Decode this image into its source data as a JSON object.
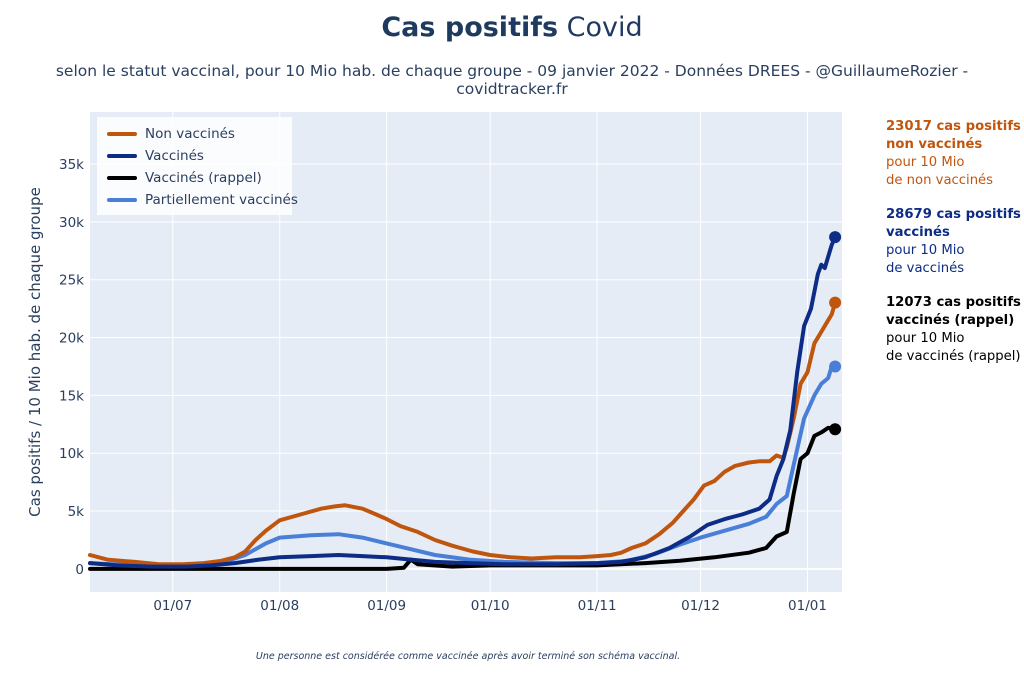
{
  "title": {
    "bold": "Cas positifs",
    "normal": "Covid"
  },
  "subtitle": "selon le statut vaccinal, pour 10 Mio hab. de chaque groupe - 09 janvier 2022 - Données DREES - @GuillaumeRozier - covidtracker.fr",
  "footnote": "Une personne est considérée comme vaccinée après avoir terminé son schéma vaccinal.",
  "annotations": [
    {
      "strong1": "23017 cas positifs",
      "strong2": "non vaccinés",
      "line1": "pour 10 Mio",
      "line2": "de non vaccinés",
      "color": "#c0560e"
    },
    {
      "strong1": "28679 cas positifs",
      "strong2": "vaccinés",
      "line1": "pour 10 Mio",
      "line2": "de vaccinés",
      "color": "#0d2c86"
    },
    {
      "strong1": "12073 cas positifs",
      "strong2": "vaccinés (rappel)",
      "line1": "pour 10 Mio",
      "line2": "de vaccinés (rappel)",
      "color": "#000000"
    }
  ],
  "chart_data": {
    "type": "line",
    "title": "Cas positifs Covid",
    "ylabel": "Cas positifs / 10 Mio hab. de chaque groupe",
    "xlabel": "",
    "x_range": [
      "2021-06-07",
      "2022-01-11"
    ],
    "ylim": [
      -2000,
      39500
    ],
    "x_ticks": [
      {
        "date": "2021-07-01",
        "label": "01/07"
      },
      {
        "date": "2021-08-01",
        "label": "01/08"
      },
      {
        "date": "2021-09-01",
        "label": "01/09"
      },
      {
        "date": "2021-10-01",
        "label": "01/10"
      },
      {
        "date": "2021-11-01",
        "label": "01/11"
      },
      {
        "date": "2021-12-01",
        "label": "01/12"
      },
      {
        "date": "2022-01-01",
        "label": "01/01"
      }
    ],
    "y_ticks": [
      {
        "value": 0,
        "label": "0"
      },
      {
        "value": 5000,
        "label": "5k"
      },
      {
        "value": 10000,
        "label": "10k"
      },
      {
        "value": 15000,
        "label": "15k"
      },
      {
        "value": 20000,
        "label": "20k"
      },
      {
        "value": 25000,
        "label": "25k"
      },
      {
        "value": 30000,
        "label": "30k"
      },
      {
        "value": 35000,
        "label": "35k"
      }
    ],
    "grid": true,
    "legend_position": "top-left",
    "series": [
      {
        "name": "Non vaccinés",
        "color": "#c0560e",
        "points": [
          [
            "2021-06-07",
            1200
          ],
          [
            "2021-06-12",
            800
          ],
          [
            "2021-06-20",
            600
          ],
          [
            "2021-06-27",
            400
          ],
          [
            "2021-07-04",
            400
          ],
          [
            "2021-07-10",
            500
          ],
          [
            "2021-07-15",
            700
          ],
          [
            "2021-07-19",
            1000
          ],
          [
            "2021-07-22",
            1500
          ],
          [
            "2021-07-25",
            2500
          ],
          [
            "2021-07-28",
            3300
          ],
          [
            "2021-08-01",
            4200
          ],
          [
            "2021-08-07",
            4700
          ],
          [
            "2021-08-13",
            5200
          ],
          [
            "2021-08-17",
            5400
          ],
          [
            "2021-08-20",
            5500
          ],
          [
            "2021-08-25",
            5200
          ],
          [
            "2021-08-29",
            4700
          ],
          [
            "2021-09-01",
            4300
          ],
          [
            "2021-09-05",
            3700
          ],
          [
            "2021-09-10",
            3200
          ],
          [
            "2021-09-15",
            2500
          ],
          [
            "2021-09-20",
            2000
          ],
          [
            "2021-09-26",
            1500
          ],
          [
            "2021-10-01",
            1200
          ],
          [
            "2021-10-07",
            1000
          ],
          [
            "2021-10-13",
            900
          ],
          [
            "2021-10-20",
            1000
          ],
          [
            "2021-10-27",
            1000
          ],
          [
            "2021-11-01",
            1100
          ],
          [
            "2021-11-05",
            1200
          ],
          [
            "2021-11-08",
            1400
          ],
          [
            "2021-11-11",
            1800
          ],
          [
            "2021-11-15",
            2200
          ],
          [
            "2021-11-19",
            3000
          ],
          [
            "2021-11-23",
            4000
          ],
          [
            "2021-11-26",
            5000
          ],
          [
            "2021-11-29",
            6000
          ],
          [
            "2021-12-02",
            7200
          ],
          [
            "2021-12-05",
            7600
          ],
          [
            "2021-12-08",
            8400
          ],
          [
            "2021-12-11",
            8900
          ],
          [
            "2021-12-15",
            9200
          ],
          [
            "2021-12-18",
            9300
          ],
          [
            "2021-12-21",
            9300
          ],
          [
            "2021-12-23",
            9800
          ],
          [
            "2021-12-25",
            9600
          ],
          [
            "2021-12-26",
            10500
          ],
          [
            "2021-12-28",
            13000
          ],
          [
            "2021-12-30",
            16000
          ],
          [
            "2022-01-01",
            17000
          ],
          [
            "2022-01-03",
            19500
          ],
          [
            "2022-01-05",
            20500
          ],
          [
            "2022-01-07",
            21500
          ],
          [
            "2022-01-08",
            22000
          ],
          [
            "2022-01-09",
            23017
          ]
        ]
      },
      {
        "name": "Vaccinés",
        "color": "#0d2c86",
        "points": [
          [
            "2021-06-07",
            500
          ],
          [
            "2021-06-15",
            300
          ],
          [
            "2021-06-25",
            200
          ],
          [
            "2021-07-05",
            200
          ],
          [
            "2021-07-12",
            300
          ],
          [
            "2021-07-19",
            500
          ],
          [
            "2021-07-26",
            800
          ],
          [
            "2021-08-01",
            1000
          ],
          [
            "2021-08-10",
            1100
          ],
          [
            "2021-08-18",
            1200
          ],
          [
            "2021-08-25",
            1100
          ],
          [
            "2021-09-01",
            1000
          ],
          [
            "2021-09-08",
            800
          ],
          [
            "2021-09-15",
            600
          ],
          [
            "2021-09-25",
            500
          ],
          [
            "2021-10-05",
            400
          ],
          [
            "2021-10-20",
            400
          ],
          [
            "2021-11-01",
            500
          ],
          [
            "2021-11-08",
            600
          ],
          [
            "2021-11-15",
            1000
          ],
          [
            "2021-11-22",
            1800
          ],
          [
            "2021-11-28",
            2800
          ],
          [
            "2021-12-03",
            3800
          ],
          [
            "2021-12-08",
            4300
          ],
          [
            "2021-12-13",
            4700
          ],
          [
            "2021-12-18",
            5200
          ],
          [
            "2021-12-21",
            6000
          ],
          [
            "2021-12-23",
            8000
          ],
          [
            "2021-12-25",
            9500
          ],
          [
            "2021-12-27",
            12000
          ],
          [
            "2021-12-29",
            17000
          ],
          [
            "2021-12-31",
            21000
          ],
          [
            "2022-01-02",
            22500
          ],
          [
            "2022-01-04",
            25500
          ],
          [
            "2022-01-05",
            26300
          ],
          [
            "2022-01-06",
            26000
          ],
          [
            "2022-01-07",
            27000
          ],
          [
            "2022-01-08",
            28000
          ],
          [
            "2022-01-09",
            28679
          ]
        ]
      },
      {
        "name": "Vaccinés (rappel)",
        "color": "#000000",
        "points": [
          [
            "2021-06-07",
            0
          ],
          [
            "2021-07-01",
            0
          ],
          [
            "2021-08-01",
            0
          ],
          [
            "2021-09-01",
            0
          ],
          [
            "2021-09-06",
            100
          ],
          [
            "2021-09-08",
            800
          ],
          [
            "2021-09-10",
            400
          ],
          [
            "2021-09-20",
            200
          ],
          [
            "2021-10-01",
            300
          ],
          [
            "2021-10-15",
            300
          ],
          [
            "2021-11-01",
            300
          ],
          [
            "2021-11-15",
            500
          ],
          [
            "2021-11-25",
            700
          ],
          [
            "2021-12-05",
            1000
          ],
          [
            "2021-12-15",
            1400
          ],
          [
            "2021-12-20",
            1800
          ],
          [
            "2021-12-23",
            2800
          ],
          [
            "2021-12-26",
            3200
          ],
          [
            "2021-12-28",
            6500
          ],
          [
            "2021-12-30",
            9500
          ],
          [
            "2022-01-01",
            10000
          ],
          [
            "2022-01-03",
            11500
          ],
          [
            "2022-01-05",
            11800
          ],
          [
            "2022-01-07",
            12200
          ],
          [
            "2022-01-09",
            12073
          ]
        ]
      },
      {
        "name": "Partiellement vaccinés",
        "color": "#4a7fd8",
        "points": [
          [
            "2021-06-07",
            500
          ],
          [
            "2021-06-20",
            300
          ],
          [
            "2021-07-05",
            300
          ],
          [
            "2021-07-15",
            500
          ],
          [
            "2021-07-22",
            1200
          ],
          [
            "2021-07-28",
            2200
          ],
          [
            "2021-08-01",
            2700
          ],
          [
            "2021-08-10",
            2900
          ],
          [
            "2021-08-18",
            3000
          ],
          [
            "2021-08-25",
            2700
          ],
          [
            "2021-09-01",
            2200
          ],
          [
            "2021-09-08",
            1700
          ],
          [
            "2021-09-15",
            1200
          ],
          [
            "2021-09-25",
            800
          ],
          [
            "2021-10-05",
            600
          ],
          [
            "2021-10-20",
            500
          ],
          [
            "2021-11-01",
            500
          ],
          [
            "2021-11-10",
            700
          ],
          [
            "2021-11-18",
            1300
          ],
          [
            "2021-11-25",
            2100
          ],
          [
            "2021-12-01",
            2700
          ],
          [
            "2021-12-08",
            3300
          ],
          [
            "2021-12-15",
            3900
          ],
          [
            "2021-12-20",
            4500
          ],
          [
            "2021-12-23",
            5600
          ],
          [
            "2021-12-26",
            6300
          ],
          [
            "2021-12-28",
            9000
          ],
          [
            "2021-12-31",
            13000
          ],
          [
            "2022-01-03",
            15000
          ],
          [
            "2022-01-05",
            16000
          ],
          [
            "2022-01-07",
            16500
          ],
          [
            "2022-01-08",
            17500
          ],
          [
            "2022-01-09",
            17500
          ]
        ]
      }
    ]
  }
}
